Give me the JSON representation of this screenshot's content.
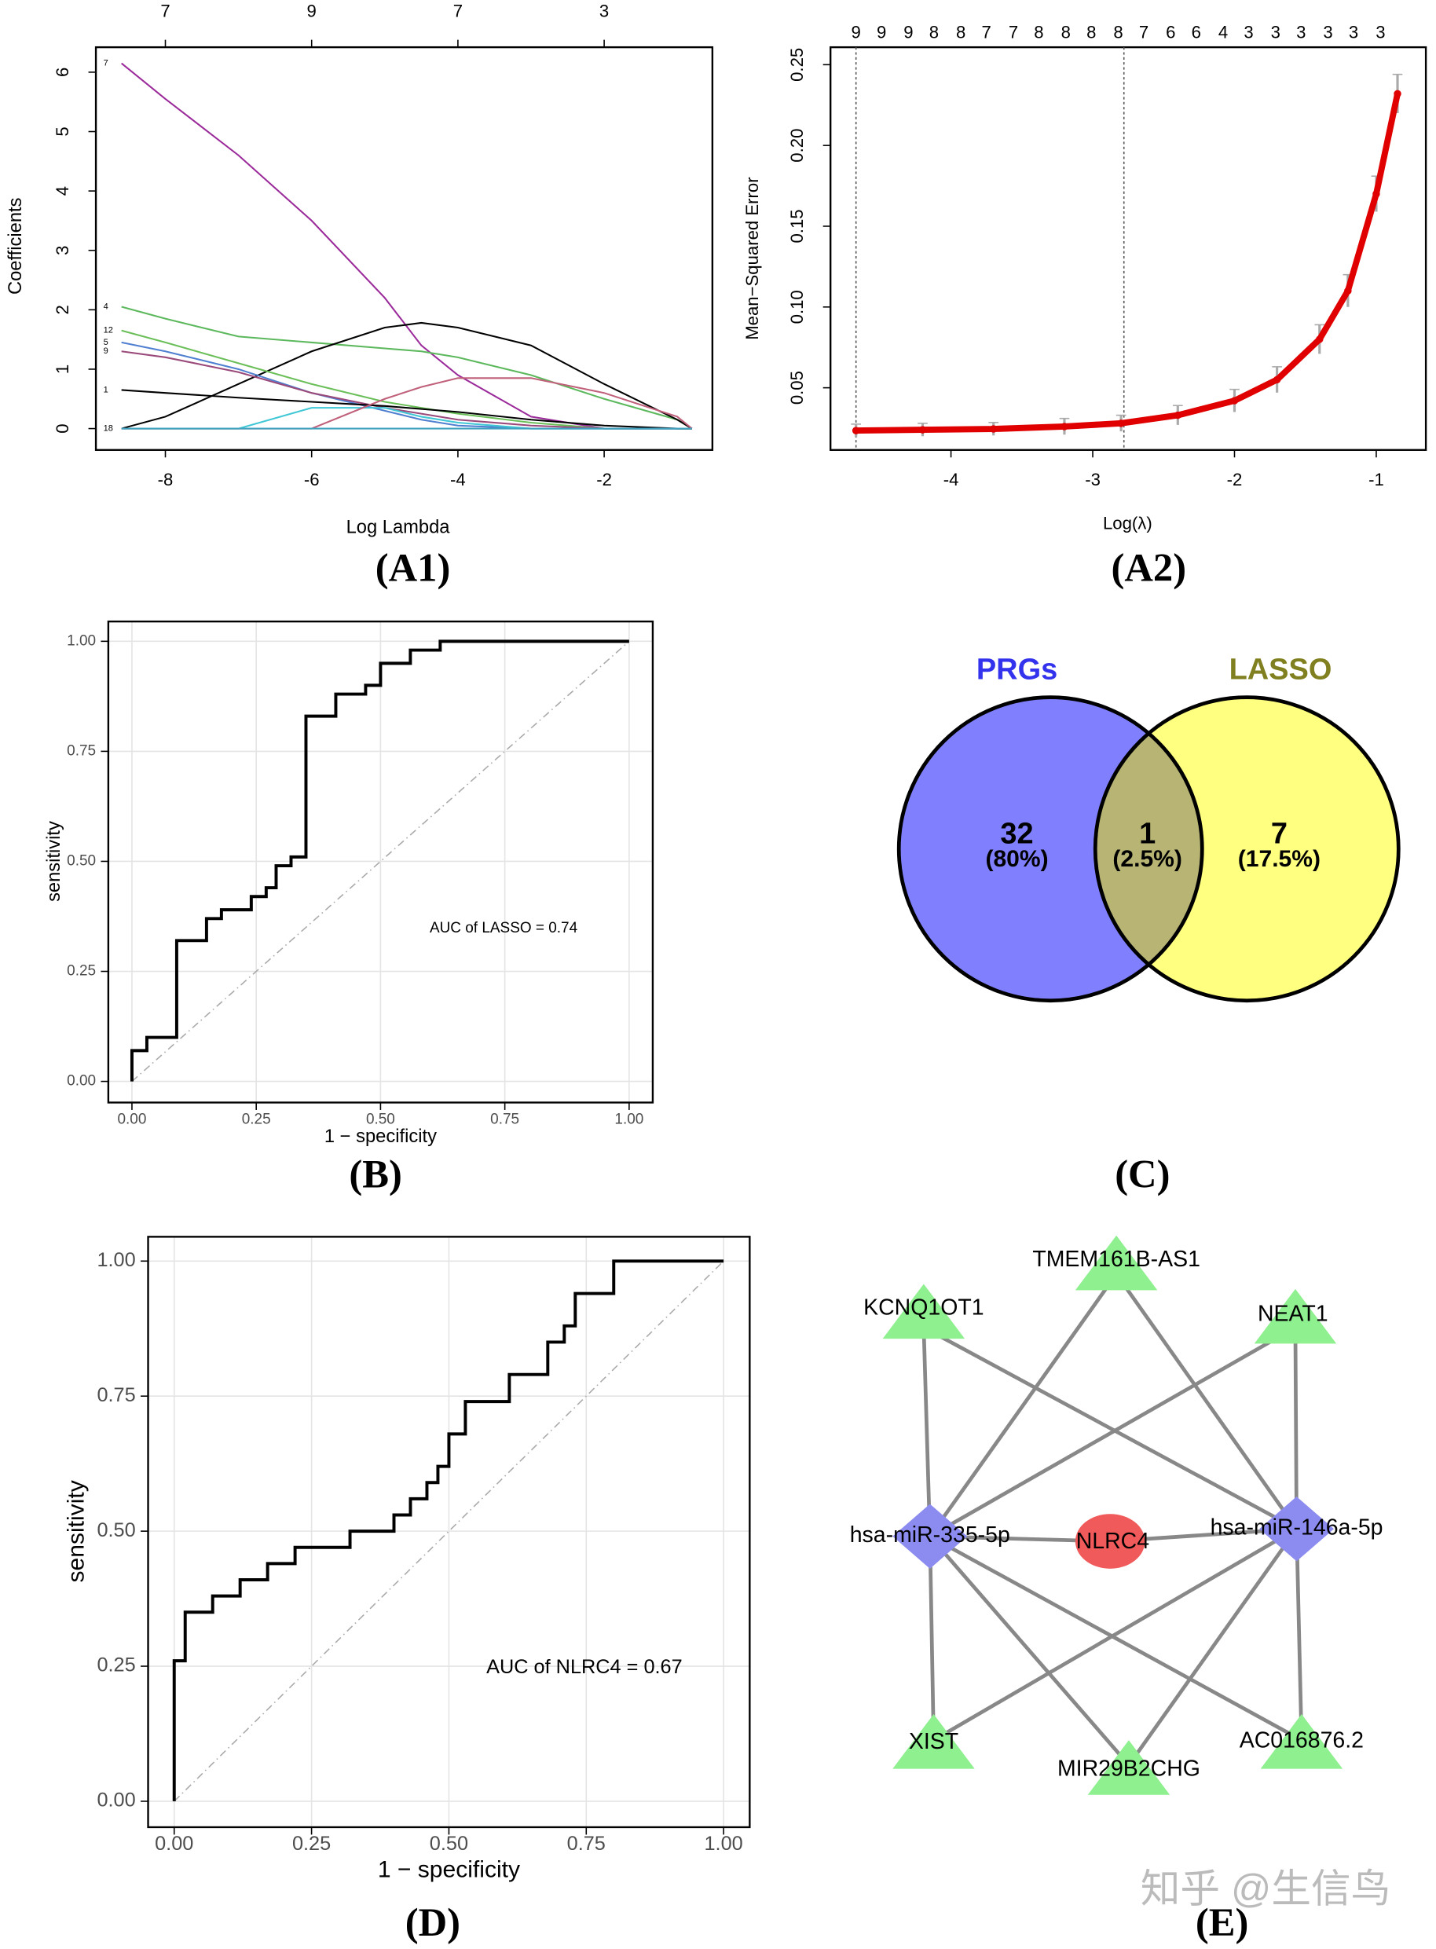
{
  "chart_data": [
    {
      "type": "line",
      "x_label": "Log Lambda",
      "y_label": "Coefficients",
      "x": [
        -8.6,
        -8,
        -7,
        -6,
        -5,
        -4.5,
        -4,
        -3,
        -2,
        -1,
        -0.8
      ],
      "series": [
        {
          "name": "7",
          "color": "#9b2a9b",
          "values": [
            6.15,
            5.55,
            4.6,
            3.5,
            2.2,
            1.4,
            0.9,
            0.2,
            0,
            0,
            0
          ]
        },
        {
          "name": "4",
          "color": "#5cb85c",
          "values": [
            2.05,
            1.85,
            1.55,
            1.45,
            1.35,
            1.3,
            1.2,
            0.9,
            0.5,
            0.15,
            0
          ]
        },
        {
          "color": "#000000",
          "values": [
            0,
            0.2,
            0.75,
            1.3,
            1.7,
            1.78,
            1.7,
            1.4,
            0.75,
            0.15,
            0
          ]
        },
        {
          "name": "12",
          "color": "#6bbf59",
          "values": [
            1.65,
            1.45,
            1.1,
            0.75,
            0.45,
            0.35,
            0.25,
            0.1,
            0,
            0,
            0
          ]
        },
        {
          "name": "5",
          "color": "#4f7fd0",
          "values": [
            1.45,
            1.3,
            1.0,
            0.6,
            0.3,
            0.15,
            0.05,
            0,
            0,
            0,
            0
          ]
        },
        {
          "name": "9",
          "color": "#9a4a7a",
          "values": [
            1.3,
            1.2,
            0.95,
            0.6,
            0.35,
            0.25,
            0.15,
            0.05,
            0,
            0,
            0
          ]
        },
        {
          "name": "1",
          "color": "#000000",
          "values": [
            0.65,
            0.6,
            0.52,
            0.45,
            0.38,
            0.33,
            0.28,
            0.15,
            0.05,
            0,
            0
          ]
        },
        {
          "color": "#3fc7d6",
          "values": [
            0,
            0,
            0,
            0.35,
            0.35,
            0.2,
            0.1,
            0,
            0,
            0,
            0
          ]
        },
        {
          "color": "#c0607a",
          "values": [
            0,
            0,
            0,
            0,
            0.5,
            0.7,
            0.85,
            0.85,
            0.6,
            0.2,
            0
          ]
        },
        {
          "name": "18",
          "color": "#3fa0c0",
          "values": [
            0,
            0,
            0,
            0,
            0,
            0,
            0,
            0,
            0,
            0,
            0
          ]
        }
      ],
      "xlim": [
        -8.95,
        -0.52
      ],
      "ylim": [
        -0.36,
        6.42
      ],
      "xticks": [
        -8,
        -6,
        -4,
        -2
      ],
      "yticks": [
        0,
        1,
        2,
        3,
        4,
        5,
        6
      ],
      "x2ticks": [
        {
          "value": -8,
          "label": "7"
        },
        {
          "value": -6,
          "label": "9"
        },
        {
          "value": -4,
          "label": "7"
        },
        {
          "value": -2,
          "label": "3"
        }
      ]
    },
    {
      "type": "errorbar",
      "x_label": "Log(λ)",
      "y_label": "Mean−Squared Error",
      "x": [
        -4.67,
        -4.2,
        -3.7,
        -3.2,
        -2.8,
        -2.4,
        -2,
        -1.7,
        -1.4,
        -1.2,
        -1,
        -0.85
      ],
      "values": [
        0.0235,
        0.024,
        0.0245,
        0.026,
        0.028,
        0.033,
        0.042,
        0.055,
        0.08,
        0.11,
        0.17,
        0.232
      ],
      "errors": [
        0.004,
        0.004,
        0.004,
        0.005,
        0.005,
        0.006,
        0.007,
        0.008,
        0.009,
        0.01,
        0.011,
        0.012
      ],
      "color": "#e00000",
      "error_color": "#aaaaaa",
      "vlines": [
        -4.67,
        -2.78
      ],
      "xlim": [
        -4.85,
        -0.65
      ],
      "ylim": [
        0.0115,
        0.2608
      ],
      "xticks": [
        -4,
        -3,
        -2,
        -1
      ],
      "yticks": [
        0.05,
        {
          "value": 0.1,
          "label": "0.10"
        },
        0.15,
        {
          "value": 0.2,
          "label": "0.20"
        },
        0.25
      ],
      "x2ticks": [
        {
          "value": -4.67,
          "label": "9"
        },
        {
          "value": -4.49,
          "label": "9"
        },
        {
          "value": -4.3,
          "label": "9"
        },
        {
          "value": -4.12,
          "label": "8"
        },
        {
          "value": -3.93,
          "label": "8"
        },
        {
          "value": -3.75,
          "label": "7"
        },
        {
          "value": -3.56,
          "label": "7"
        },
        {
          "value": -3.38,
          "label": "8"
        },
        {
          "value": -3.19,
          "label": "8"
        },
        {
          "value": -3.01,
          "label": "8"
        },
        {
          "value": -2.82,
          "label": "8"
        },
        {
          "value": -2.64,
          "label": "7"
        },
        {
          "value": -2.45,
          "label": "6"
        },
        {
          "value": -2.27,
          "label": "6"
        },
        {
          "value": -2.08,
          "label": "4"
        },
        {
          "value": -1.9,
          "label": "3"
        },
        {
          "value": -1.71,
          "label": "3"
        },
        {
          "value": -1.53,
          "label": "3"
        },
        {
          "value": -1.34,
          "label": "3"
        },
        {
          "value": -1.16,
          "label": "3"
        },
        {
          "value": -0.97,
          "label": "3"
        }
      ]
    },
    {
      "type": "step",
      "x_label": "1 − specificity",
      "y_label": "sensitivity",
      "annotation": "AUC of LASSO =  0.74",
      "x": [
        0,
        0,
        0.03,
        0.03,
        0.09,
        0.09,
        0.15,
        0.15,
        0.18,
        0.18,
        0.24,
        0.24,
        0.27,
        0.27,
        0.29,
        0.29,
        0.32,
        0.32,
        0.35,
        0.35,
        0.41,
        0.41,
        0.47,
        0.47,
        0.5,
        0.5,
        0.56,
        0.56,
        0.62,
        0.62,
        1
      ],
      "values": [
        0,
        0.07,
        0.07,
        0.1,
        0.1,
        0.32,
        0.32,
        0.37,
        0.37,
        0.39,
        0.39,
        0.42,
        0.42,
        0.44,
        0.44,
        0.49,
        0.49,
        0.51,
        0.51,
        0.83,
        0.83,
        0.88,
        0.88,
        0.9,
        0.9,
        0.95,
        0.95,
        0.98,
        0.98,
        1,
        1
      ],
      "color": "#000000",
      "reference_color": "#aaaaaa",
      "grid": true,
      "xlim": [
        -0.0475,
        1.0475
      ],
      "ylim": [
        -0.048,
        1.045
      ],
      "xticks": [
        {
          "value": 0,
          "label": "0.00"
        },
        0.25,
        {
          "value": 0.5,
          "label": "0.50"
        },
        0.75,
        {
          "value": 1,
          "label": "1.00"
        }
      ],
      "yticks": [
        {
          "value": 0,
          "label": "0.00"
        },
        0.25,
        {
          "value": 0.5,
          "label": "0.50"
        },
        0.75,
        {
          "value": 1,
          "label": "1.00"
        }
      ]
    },
    {
      "type": "step",
      "x_label": "1 − specificity",
      "y_label": "sensitivity",
      "annotation": "AUC of NLRC4 =  0.67",
      "x": [
        0,
        0,
        0.02,
        0.02,
        0.07,
        0.07,
        0.12,
        0.12,
        0.17,
        0.17,
        0.22,
        0.22,
        0.32,
        0.32,
        0.4,
        0.4,
        0.43,
        0.43,
        0.46,
        0.46,
        0.48,
        0.48,
        0.5,
        0.5,
        0.53,
        0.53,
        0.61,
        0.61,
        0.68,
        0.68,
        0.71,
        0.71,
        0.73,
        0.73,
        0.8,
        0.8,
        1
      ],
      "values": [
        0,
        0.26,
        0.26,
        0.35,
        0.35,
        0.38,
        0.38,
        0.41,
        0.41,
        0.44,
        0.44,
        0.47,
        0.47,
        0.5,
        0.5,
        0.53,
        0.53,
        0.56,
        0.56,
        0.59,
        0.59,
        0.62,
        0.62,
        0.68,
        0.68,
        0.74,
        0.74,
        0.79,
        0.79,
        0.85,
        0.85,
        0.88,
        0.88,
        0.94,
        0.94,
        1,
        1
      ],
      "color": "#000000",
      "reference_color": "#aaaaaa",
      "grid": true,
      "xlim": [
        -0.0475,
        1.0475
      ],
      "ylim": [
        -0.048,
        1.045
      ],
      "xticks": [
        {
          "value": 0,
          "label": "0.00"
        },
        0.25,
        {
          "value": 0.5,
          "label": "0.50"
        },
        0.75,
        {
          "value": 1,
          "label": "1.00"
        }
      ],
      "yticks": [
        {
          "value": 0,
          "label": "0.00"
        },
        0.25,
        {
          "value": 0.5,
          "label": "0.50"
        },
        0.75,
        {
          "value": 1,
          "label": "1.00"
        }
      ]
    }
  ],
  "venn": {
    "sets": [
      {
        "label": "PRGs"
      },
      {
        "label": "LASSO"
      }
    ],
    "regions": [
      {
        "count": 32,
        "percent": "(80%)"
      },
      {
        "count": 1,
        "percent": "(2.5%)"
      },
      {
        "count": 7,
        "percent": "(17.5%)"
      }
    ]
  },
  "network": {
    "nodes": [
      {
        "label": "TMEM161B-AS1"
      },
      {
        "label": "KCNQ1OT1"
      },
      {
        "label": "NEAT1"
      },
      {
        "label": "hsa-miR-335-5p"
      },
      {
        "label": "NLRC4"
      },
      {
        "label": "hsa-miR-146a-5p"
      },
      {
        "label": "XIST"
      },
      {
        "label": "MIR29B2CHG"
      },
      {
        "label": "AC016876.2"
      }
    ]
  },
  "panel_labels": [
    "(A1)",
    "(A2)",
    "(B)",
    "(C)",
    "(D)",
    "(E)"
  ],
  "watermark": "知乎 @生信鸟"
}
